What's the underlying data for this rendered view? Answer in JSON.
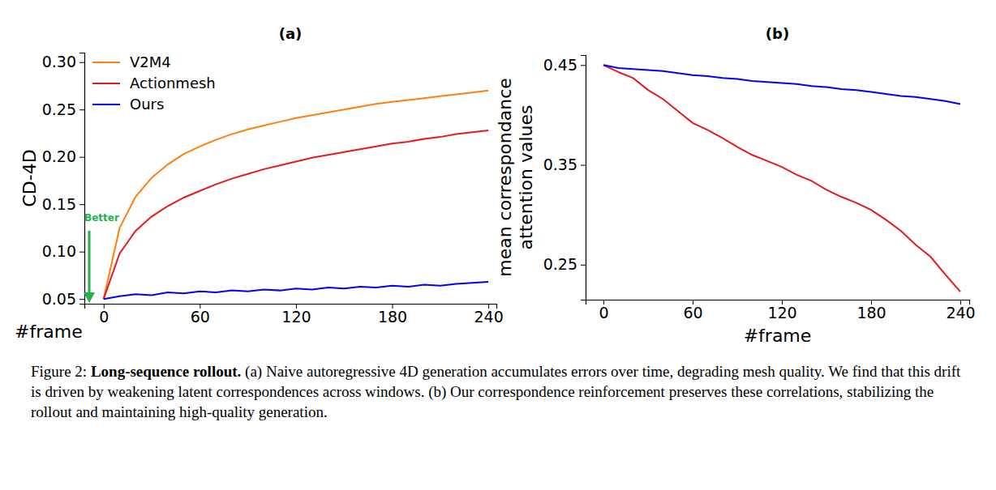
{
  "chart_data": [
    {
      "type": "line",
      "title": "(a)",
      "x_label": "#frame",
      "y_label": "CD-4D",
      "x": [
        0,
        10,
        20,
        30,
        40,
        50,
        60,
        70,
        80,
        90,
        100,
        110,
        120,
        130,
        140,
        150,
        160,
        170,
        180,
        190,
        200,
        210,
        220,
        230,
        240
      ],
      "series": [
        {
          "name": "V2M4",
          "color": "#ff7f0e",
          "values": [
            0.05,
            0.125,
            0.158,
            0.178,
            0.192,
            0.203,
            0.211,
            0.218,
            0.224,
            0.229,
            0.233,
            0.237,
            0.241,
            0.244,
            0.247,
            0.25,
            0.253,
            0.256,
            0.258,
            0.26,
            0.262,
            0.264,
            0.266,
            0.268,
            0.27
          ]
        },
        {
          "name": "Actionmesh",
          "color": "#e41a1c",
          "values": [
            0.05,
            0.098,
            0.122,
            0.137,
            0.148,
            0.157,
            0.164,
            0.171,
            0.177,
            0.182,
            0.187,
            0.191,
            0.195,
            0.199,
            0.202,
            0.205,
            0.208,
            0.211,
            0.214,
            0.216,
            0.219,
            0.221,
            0.224,
            0.226,
            0.228
          ]
        },
        {
          "name": "Ours",
          "color": "#0000ff",
          "values": [
            0.05,
            0.053,
            0.055,
            0.054,
            0.057,
            0.056,
            0.058,
            0.057,
            0.059,
            0.058,
            0.06,
            0.059,
            0.061,
            0.06,
            0.062,
            0.061,
            0.063,
            0.062,
            0.064,
            0.063,
            0.065,
            0.064,
            0.066,
            0.067,
            0.068
          ]
        }
      ],
      "xlim": [
        -12,
        245
      ],
      "ylim": [
        0.045,
        0.31
      ],
      "xticks": [
        0,
        60,
        120,
        180,
        240
      ],
      "yticks": [
        0.05,
        {
          "value": 0.1,
          "label": "0.10"
        },
        0.15,
        {
          "value": 0.2,
          "label": "0.20"
        },
        0.25,
        {
          "value": 0.3,
          "label": "0.30"
        }
      ],
      "annotations": [
        "Better"
      ],
      "legend": "upper left",
      "grid": false
    },
    {
      "type": "line",
      "title": "(b)",
      "x_label": "#frame",
      "y_label": "mean correspondance attention values",
      "x": [
        0,
        10,
        20,
        30,
        40,
        50,
        60,
        70,
        80,
        90,
        100,
        110,
        120,
        130,
        140,
        150,
        160,
        170,
        180,
        190,
        200,
        210,
        220,
        230,
        240
      ],
      "series": [
        {
          "color": "#e41a1c",
          "values": [
            0.45,
            0.443,
            0.437,
            0.425,
            0.416,
            0.404,
            0.392,
            0.385,
            0.377,
            0.368,
            0.36,
            0.354,
            0.348,
            0.34,
            0.334,
            0.325,
            0.318,
            0.312,
            0.305,
            0.295,
            0.284,
            0.27,
            0.258,
            0.24,
            0.223
          ]
        },
        {
          "color": "#0000ff",
          "values": [
            0.45,
            0.447,
            0.446,
            0.445,
            0.444,
            0.442,
            0.44,
            0.439,
            0.437,
            0.436,
            0.434,
            0.433,
            0.432,
            0.431,
            0.429,
            0.428,
            0.426,
            0.425,
            0.423,
            0.421,
            0.419,
            0.418,
            0.416,
            0.414,
            0.411
          ]
        }
      ],
      "xlim": [
        -12,
        246
      ],
      "ylim": [
        0.215,
        0.46
      ],
      "xticks": [
        0,
        60,
        120,
        180,
        240
      ],
      "yticks": [
        0.25,
        0.35,
        0.45
      ],
      "grid": false
    }
  ],
  "caption": {
    "label": "Figure 2:",
    "title": "Long-sequence rollout.",
    "text": "(a) Naive autoregressive 4D generation accumulates errors over time, degrading mesh quality. We find that this drift is driven by weakening latent correspondences across windows. (b) Our correspondence reinforcement preserves these correlations, stabilizing the rollout and maintaining high-quality generation."
  }
}
